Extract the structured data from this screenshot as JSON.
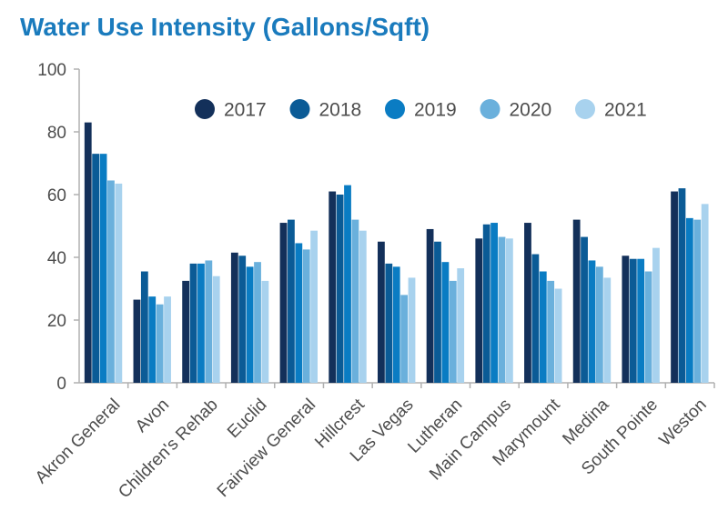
{
  "chart_data": {
    "type": "bar",
    "title": "Water Use Intensity (Gallons/Sqft)",
    "xlabel": "",
    "ylabel": "",
    "ylim": [
      0,
      100
    ],
    "yticks": [
      0,
      20,
      40,
      60,
      80,
      100
    ],
    "grid": false,
    "legend_position": "top-right",
    "categories": [
      "Akron General",
      "Avon",
      "Children's Rehab",
      "Euclid",
      "Fairview General",
      "Hillcrest",
      "Las Vegas",
      "Lutheran",
      "Main Campus",
      "Marymount",
      "Medina",
      "South Pointe",
      "Weston"
    ],
    "series": [
      {
        "name": "2017",
        "color": "#13305a",
        "values": [
          83,
          26.5,
          32.5,
          41.5,
          51,
          61,
          45,
          49,
          46,
          51,
          52,
          40.5,
          61
        ]
      },
      {
        "name": "2018",
        "color": "#0b5b96",
        "values": [
          73,
          35.5,
          38,
          40.5,
          52,
          60,
          38,
          45,
          50.5,
          41,
          46.5,
          39.5,
          62
        ]
      },
      {
        "name": "2019",
        "color": "#0a7cc3",
        "values": [
          73,
          27.5,
          38,
          37,
          44.5,
          63,
          37,
          38.5,
          51,
          35.5,
          39,
          39.5,
          52.5
        ]
      },
      {
        "name": "2020",
        "color": "#6ab0dc",
        "values": [
          64.5,
          25,
          39,
          38.5,
          42.5,
          52,
          28,
          32.5,
          46.5,
          32.5,
          37,
          35.5,
          52
        ]
      },
      {
        "name": "2021",
        "color": "#a8d2ee",
        "values": [
          63.5,
          27.5,
          34,
          32.5,
          48.5,
          48.5,
          33.5,
          36.5,
          46,
          30,
          33.5,
          43,
          57
        ]
      }
    ]
  }
}
